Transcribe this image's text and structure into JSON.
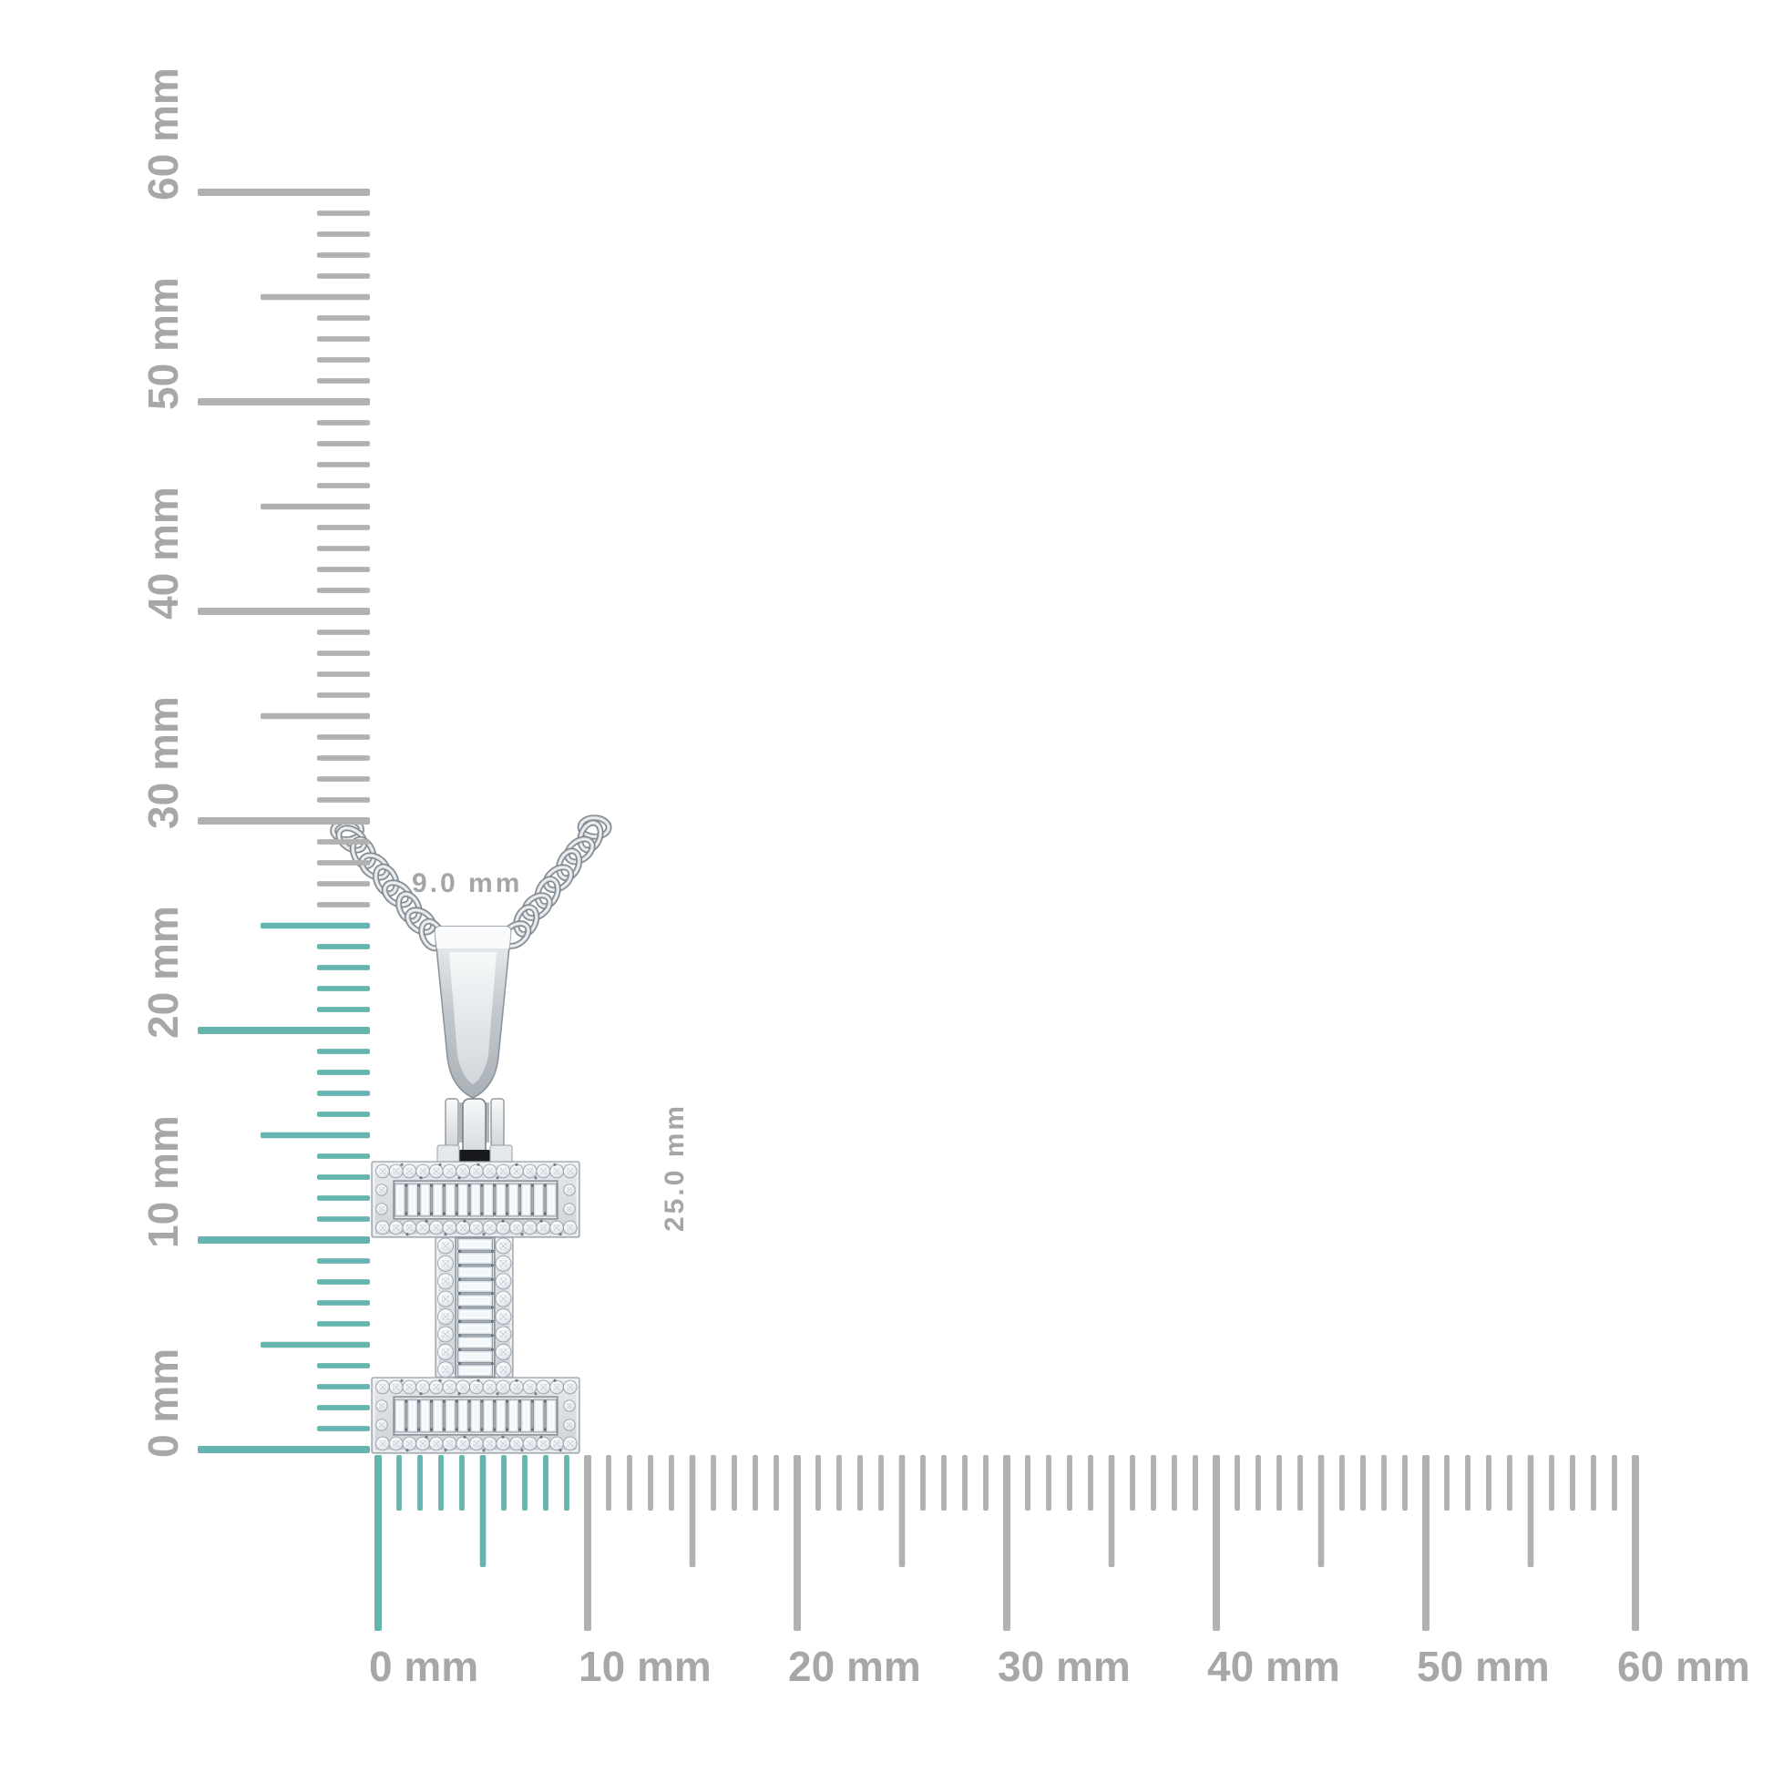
{
  "dimension_labels": {
    "width": "9.0 mm",
    "height": "25.0 mm"
  },
  "rulers": {
    "unit": "mm",
    "vertical": {
      "range_mm": [
        0,
        60
      ],
      "minor_step_mm": 1,
      "medium_step_mm": 5,
      "major_step_mm": 10,
      "highlight_range_mm": [
        0,
        25
      ],
      "labels": [
        "0 mm",
        "10 mm",
        "20 mm",
        "30 mm",
        "40 mm",
        "50 mm",
        "60 mm"
      ]
    },
    "horizontal": {
      "range_mm": [
        0,
        60
      ],
      "minor_step_mm": 1,
      "medium_step_mm": 5,
      "major_step_mm": 10,
      "highlight_range_mm": [
        0,
        9
      ],
      "labels": [
        "0 mm",
        "10 mm",
        "20 mm",
        "30 mm",
        "40 mm",
        "50 mm",
        "60 mm"
      ]
    }
  },
  "pendant": {
    "letter": "I",
    "bar_baguette_count": 13,
    "stem_baguette_count": 10,
    "bar_pave_per_row": 15,
    "stem_pave_per_column": 8,
    "chain_link_count_per_side": 9
  },
  "colors": {
    "background": "#ffffff",
    "tick_gray": "#b1b1b1",
    "highlight_teal": "#66b4ae",
    "ruler_label_gray": "#a7a7a7",
    "dimension_label_gray": "#a2a6a9",
    "metal_light": "#f4f6f8",
    "metal_mid": "#c9cfd4",
    "metal_dark": "#8b9298",
    "diamond_white": "#f3f7fa",
    "diamond_edge": "#99a2aa",
    "hinge_slot_dark": "#17191c"
  }
}
